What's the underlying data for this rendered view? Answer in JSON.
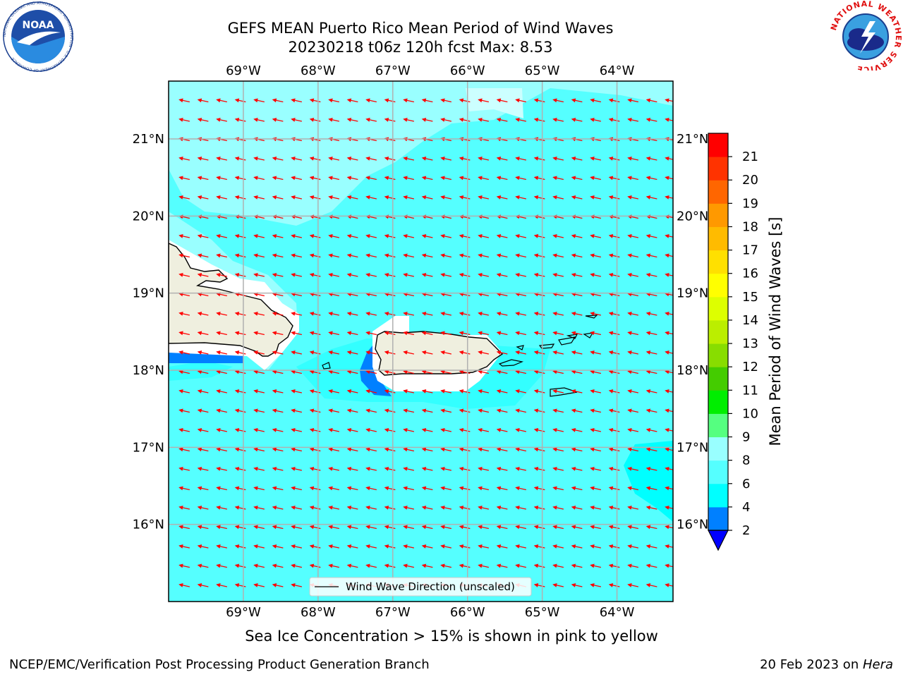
{
  "header": {
    "title_line1": "GEFS MEAN Puerto Rico Mean Period of Wind Waves",
    "title_line2": "20230218 t06z 120h fcst   Max: 8.53"
  },
  "logos": {
    "noaa": {
      "label": "NOAA",
      "ring_text": "NATIONAL OCEANIC AND ATMOSPHERIC ADMINISTRATION · U.S. DEPARTMENT OF COMMERCE"
    },
    "nws": {
      "ring_text": "NATIONAL WEATHER SERVICE"
    }
  },
  "map": {
    "lon_labels": [
      "69°W",
      "68°W",
      "67°W",
      "66°W",
      "65°W",
      "64°W"
    ],
    "lat_labels": [
      "21°N",
      "20°N",
      "19°N",
      "18°N",
      "17°N",
      "16°N"
    ],
    "extent": {
      "lon_min": -70.0,
      "lon_max": -63.25,
      "lat_min": 15.0,
      "lat_max": 21.75
    },
    "legend_label": "Wind Wave Direction (unscaled)",
    "arrow_direction": "toward west-southwest",
    "colors": {
      "ocean_main": "#55ffff",
      "ocean_light": "#99ffff",
      "ocean_deep": "#00ffff",
      "land": "#efefdf",
      "arrow": "#ff0000",
      "shadow_blue": "#0080ff"
    }
  },
  "colorbar": {
    "label": "Mean Period of Wind Waves [s]",
    "ticks": [
      "2",
      "4",
      "6",
      "8",
      "9",
      "10",
      "11",
      "12",
      "13",
      "14",
      "15",
      "16",
      "17",
      "18",
      "19",
      "20",
      "21"
    ],
    "colors": [
      "#0080ff",
      "#00ffff",
      "#55ffff",
      "#99ffff",
      "#55ff80",
      "#00ee00",
      "#44cc00",
      "#88dd00",
      "#bbee00",
      "#ddff00",
      "#ffff00",
      "#ffe000",
      "#ffbb00",
      "#ff9900",
      "#ff6600",
      "#ff3300",
      "#ff0000"
    ],
    "extend_min_color": "#0000ff"
  },
  "notes": {
    "sea_ice": "Sea Ice Concentration > 15% is shown in pink to yellow"
  },
  "footer": {
    "left": "NCEP/EMC/Verification Post Processing Product Generation Branch",
    "right_prefix": "20 Feb 2023 on ",
    "right_machine": "Hera"
  }
}
